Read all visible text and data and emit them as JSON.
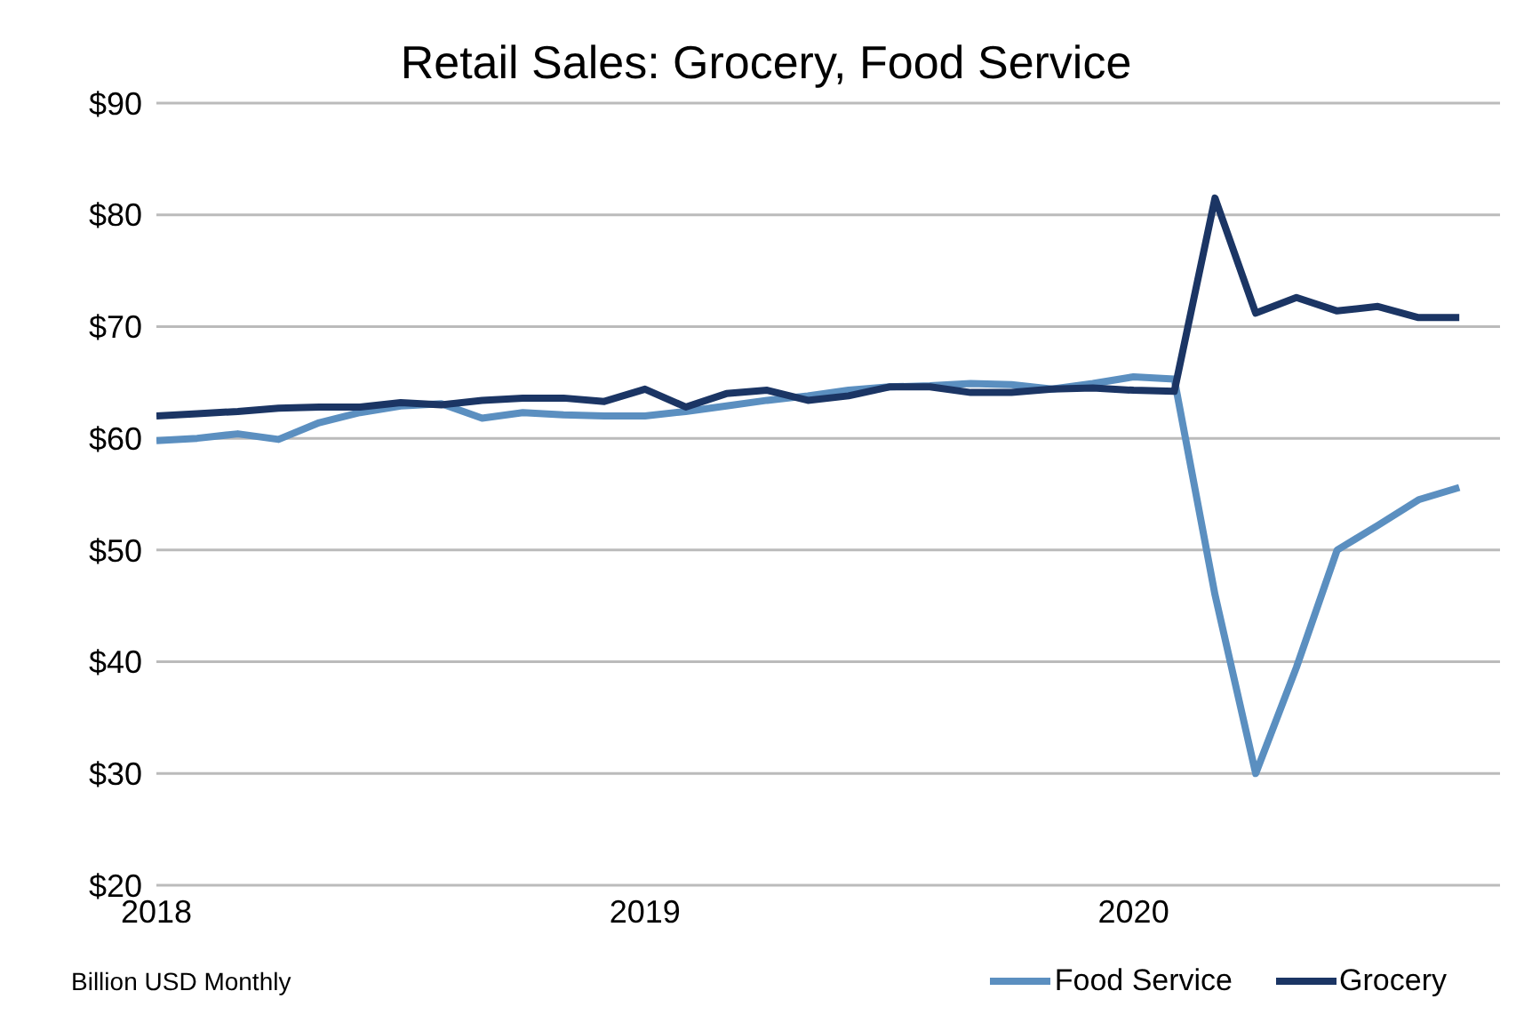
{
  "chart_data": {
    "type": "line",
    "title": "Retail Sales: Grocery, Food Service",
    "x": [
      "2018-01",
      "2018-02",
      "2018-03",
      "2018-04",
      "2018-05",
      "2018-06",
      "2018-07",
      "2018-08",
      "2018-09",
      "2018-10",
      "2018-11",
      "2018-12",
      "2019-01",
      "2019-02",
      "2019-03",
      "2019-04",
      "2019-05",
      "2019-06",
      "2019-07",
      "2019-08",
      "2019-09",
      "2019-10",
      "2019-11",
      "2019-12",
      "2020-01",
      "2020-02",
      "2020-03",
      "2020-04",
      "2020-05",
      "2020-06",
      "2020-07",
      "2020-08",
      "2020-09"
    ],
    "series": [
      {
        "name": "Food Service",
        "color": "#5b8fc0",
        "values": [
          59.8,
          60,
          60.4,
          59.9,
          61.4,
          62.3,
          62.9,
          63.1,
          61.8,
          62.3,
          62.1,
          62,
          62,
          62.4,
          62.9,
          63.4,
          63.8,
          64.3,
          64.6,
          64.7,
          64.9,
          64.8,
          64.4,
          64.9,
          65.5,
          65.3,
          46,
          30,
          39.5,
          50,
          52.2,
          54.5,
          55.6
        ]
      },
      {
        "name": "Grocery",
        "color": "#1b3564",
        "values": [
          62,
          62.2,
          62.4,
          62.7,
          62.8,
          62.8,
          63.2,
          63,
          63.4,
          63.6,
          63.6,
          63.3,
          64.4,
          62.8,
          64,
          64.3,
          63.4,
          63.8,
          64.6,
          64.6,
          64.1,
          64.1,
          64.4,
          64.5,
          64.3,
          64.2,
          81.5,
          71.2,
          72.6,
          71.4,
          71.8,
          70.8,
          70.8
        ]
      }
    ],
    "xlim": [
      "2018-01",
      "2020-10"
    ],
    "xticks": [
      {
        "value": "2018-01",
        "label": "2018"
      },
      {
        "value": "2019-01",
        "label": "2019"
      },
      {
        "value": "2020-01",
        "label": "2020"
      }
    ],
    "ylim": [
      20,
      90
    ],
    "yticks": [
      {
        "value": 20,
        "label": "$20"
      },
      {
        "value": 30,
        "label": "$30"
      },
      {
        "value": 40,
        "label": "$40"
      },
      {
        "value": 50,
        "label": "$50"
      },
      {
        "value": 60,
        "label": "$60"
      },
      {
        "value": 70,
        "label": "$70"
      },
      {
        "value": 80,
        "label": "$80"
      },
      {
        "value": 90,
        "label": "$90"
      }
    ],
    "grid": "y",
    "legend": "bottom right",
    "line_style": "solid",
    "annotations": [
      "Billion USD Monthly"
    ]
  }
}
